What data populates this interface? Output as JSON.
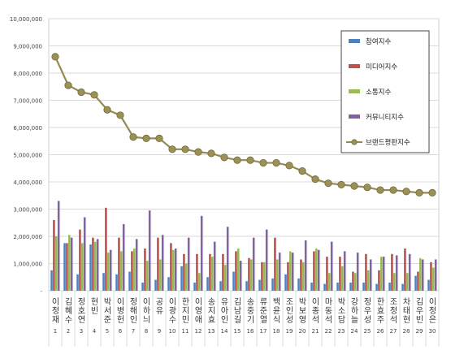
{
  "chart_data": {
    "type": "bar",
    "ylim": [
      0,
      10000000
    ],
    "yticks": [
      "-",
      "1,000,000",
      "2,000,000",
      "3,000,000",
      "4,000,000",
      "5,000,000",
      "6,000,000",
      "7,000,000",
      "8,000,000",
      "9,000,000",
      "10,000,000"
    ],
    "categories": [
      "이정재",
      "김혜수",
      "정호연",
      "현빈",
      "박서준",
      "이병헌",
      "정해인",
      "이하늬",
      "공유",
      "이광수",
      "한지민",
      "이영애",
      "송지효",
      "유아인",
      "김남길",
      "송중기",
      "류준열",
      "백윤식",
      "조인성",
      "박보영",
      "이종석",
      "마동석",
      "박소담",
      "강하늘",
      "정우성",
      "한효주",
      "조정석",
      "차태현",
      "김우빈",
      "이정은"
    ],
    "ranks": [
      "1",
      "2",
      "3",
      "4",
      "5",
      "6",
      "7",
      "8",
      "9",
      "10",
      "11",
      "12",
      "13",
      "14",
      "15",
      "16",
      "17",
      "18",
      "19",
      "20",
      "21",
      "22",
      "23",
      "24",
      "25",
      "26",
      "27",
      "28",
      "29",
      "30"
    ],
    "legend_position": "top-right",
    "series": [
      {
        "name": "참여지수",
        "color": "#4f81bd",
        "kind": "bar",
        "values": [
          750000,
          1750000,
          600000,
          1700000,
          650000,
          600000,
          700000,
          300000,
          400000,
          500000,
          900000,
          300000,
          500000,
          350000,
          700000,
          350000,
          400000,
          450000,
          600000,
          450000,
          300000,
          250000,
          300000,
          300000,
          300000,
          250000,
          300000,
          250000,
          550000,
          400000
        ]
      },
      {
        "name": "미디어지수",
        "color": "#c0504d",
        "kind": "bar",
        "values": [
          2600000,
          1750000,
          2250000,
          1950000,
          3050000,
          1950000,
          1450000,
          1550000,
          1950000,
          1750000,
          1350000,
          1350000,
          1350000,
          1350000,
          1450000,
          1200000,
          1050000,
          1950000,
          1050000,
          1150000,
          1450000,
          1250000,
          1250000,
          700000,
          1350000,
          750000,
          1350000,
          1550000,
          700000,
          1050000
        ]
      },
      {
        "name": "소통지수",
        "color": "#9bbb59",
        "kind": "bar",
        "values": [
          2000000,
          2050000,
          1750000,
          1800000,
          1400000,
          1450000,
          1550000,
          1100000,
          1150000,
          1500000,
          1000000,
          650000,
          1250000,
          950000,
          1550000,
          1150000,
          1050000,
          1150000,
          1450000,
          1050000,
          1550000,
          650000,
          900000,
          650000,
          750000,
          1250000,
          650000,
          650000,
          1200000,
          850000
        ]
      },
      {
        "name": "커뮤니티지수",
        "color": "#8064a2",
        "kind": "bar",
        "values": [
          3300000,
          1950000,
          2700000,
          1900000,
          1500000,
          2450000,
          1900000,
          2950000,
          2050000,
          1550000,
          1950000,
          2750000,
          1800000,
          2350000,
          1100000,
          1950000,
          2250000,
          1400000,
          1400000,
          1850000,
          1500000,
          1800000,
          1450000,
          1400000,
          1150000,
          1250000,
          1300000,
          1350000,
          1150000,
          1150000
        ]
      },
      {
        "name": "브랜드평판지수",
        "color": "#948a54",
        "kind": "line",
        "values": [
          8600000,
          7550000,
          7300000,
          7200000,
          6650000,
          6450000,
          5650000,
          5600000,
          5600000,
          5200000,
          5200000,
          5100000,
          5050000,
          4900000,
          4800000,
          4800000,
          4700000,
          4700000,
          4600000,
          4400000,
          4100000,
          3950000,
          3900000,
          3850000,
          3800000,
          3700000,
          3700000,
          3650000,
          3600000,
          3600000
        ]
      }
    ]
  }
}
